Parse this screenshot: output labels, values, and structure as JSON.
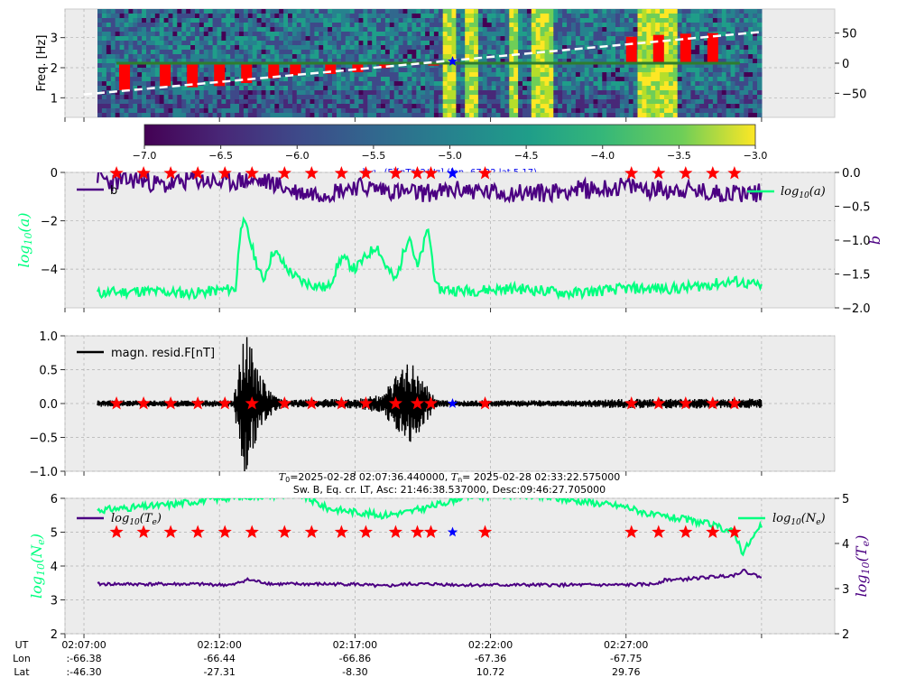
{
  "chart_data": [
    {
      "type": "heatmap",
      "panel": "spectrogram",
      "ylabel": "Freq. [Hz]",
      "ylim": [
        0.35,
        3.95
      ],
      "yticks": [
        1,
        2,
        3
      ],
      "right_ylim": [
        -90,
        90
      ],
      "right_yticks": [
        50,
        0,
        -50
      ],
      "colorbar": {
        "min": -7.0,
        "max": -3.0,
        "ticks": [
          -7.0,
          -6.5,
          -6.0,
          -5.5,
          -5.0,
          -4.5,
          -4.0,
          -3.5,
          -3.0
        ],
        "label": "log10(F)[nT**2/Hz] (lon -67.22 lat 5.17)"
      },
      "colorbar_label_prefix": "log",
      "colorbar_label_sub": "10",
      "colorbar_label_rest": "(F)[nT**2/Hz] (lon -67.22 lat 5.17)",
      "latitude_line": {
        "x": [
          0,
          25
        ],
        "y": [
          -52,
          52
        ],
        "style": "dashed",
        "color": "#ffffff"
      },
      "bright_bands_min": [
        [
          13.3,
          13.7
        ],
        [
          14.0,
          14.5
        ],
        [
          15.7,
          16.0
        ],
        [
          16.5,
          17.4
        ],
        [
          20.5,
          21.9
        ]
      ],
      "event_bars": [
        {
          "x": 1.5,
          "top": 0,
          "bottom": -45
        },
        {
          "x": 3.0,
          "top": 0,
          "bottom": -38
        },
        {
          "x": 4.0,
          "top": 0,
          "bottom": -40
        },
        {
          "x": 5.0,
          "top": 0,
          "bottom": -38
        },
        {
          "x": 6.0,
          "top": 0,
          "bottom": -33
        },
        {
          "x": 7.0,
          "top": 0,
          "bottom": -25
        },
        {
          "x": 7.8,
          "top": 0,
          "bottom": -20
        },
        {
          "x": 9.1,
          "top": 0,
          "bottom": -18
        },
        {
          "x": 10.1,
          "top": 0,
          "bottom": -15
        },
        {
          "x": 11.1,
          "top": 0,
          "bottom": -8
        },
        {
          "x": 12.9,
          "top": 0,
          "bottom": -4
        },
        {
          "x": 20.2,
          "top": 44,
          "bottom": 0
        },
        {
          "x": 21.2,
          "top": 47,
          "bottom": 0
        },
        {
          "x": 22.2,
          "top": 49,
          "bottom": 0
        },
        {
          "x": 23.2,
          "top": 50,
          "bottom": 0
        }
      ],
      "star": {
        "x": 13.6,
        "y": 3
      }
    },
    {
      "type": "line",
      "panel": "fit_params",
      "ylabel_left": "log10(a)",
      "ylabel_right": "b",
      "ylim_left": [
        -5.6,
        0
      ],
      "yticks_left": [
        0,
        -2,
        -4
      ],
      "ylim_right": [
        -2.0,
        0.0
      ],
      "yticks_right": [
        0.0,
        -0.5,
        -1.0,
        -1.5,
        -2.0
      ],
      "series": [
        {
          "name": "b",
          "axis": "right",
          "color": "#4b0082",
          "t": [
            0.5,
            1,
            2,
            3,
            4,
            5,
            6,
            7,
            7.5,
            8,
            9,
            10,
            11,
            12,
            13,
            14,
            15,
            16,
            17,
            18,
            19,
            20,
            21,
            22,
            23,
            24,
            25
          ],
          "y": [
            -0.05,
            -0.15,
            -0.1,
            -0.2,
            -0.1,
            -0.15,
            -0.12,
            -0.15,
            -0.25,
            -0.3,
            -0.3,
            -0.2,
            -0.25,
            -0.3,
            -0.3,
            -0.25,
            -0.3,
            -0.3,
            -0.3,
            -0.25,
            -0.25,
            -0.2,
            -0.25,
            -0.25,
            -0.3,
            -0.3,
            -0.3
          ]
        },
        {
          "name": "log10(a)",
          "axis": "left",
          "color": "#00ff7f",
          "t": [
            0.5,
            2,
            4,
            5.6,
            5.8,
            6.0,
            6.3,
            6.6,
            7,
            7.5,
            8,
            9,
            9.5,
            10,
            10.8,
            11.1,
            11.5,
            12,
            12.3,
            12.7,
            13,
            14,
            16,
            18,
            20,
            22,
            24,
            25
          ],
          "y": [
            -5.0,
            -4.9,
            -5.0,
            -4.8,
            -2.0,
            -2.3,
            -3.5,
            -4.5,
            -3.2,
            -4.0,
            -4.5,
            -4.8,
            -3.5,
            -4.0,
            -3.0,
            -3.8,
            -4.5,
            -2.5,
            -4.0,
            -2.3,
            -4.8,
            -4.9,
            -4.8,
            -5.0,
            -4.8,
            -4.8,
            -4.5,
            -4.7
          ]
        }
      ],
      "legend_left": "b",
      "legend_right": "log10(a)"
    },
    {
      "type": "line",
      "panel": "residual",
      "ylim": [
        -1.0,
        1.0
      ],
      "yticks": [
        1.0,
        0.5,
        0.0,
        -0.5,
        -1.0
      ],
      "series": [
        {
          "name": "magn. resid.F[nT]",
          "color": "#000000",
          "t": [
            0.5,
            2,
            4,
            5.5,
            6.0,
            6.3,
            6.6,
            7,
            7.5,
            8,
            10,
            11,
            12,
            12.5,
            13,
            13.5,
            14,
            15,
            18,
            20,
            22,
            25
          ],
          "amp": [
            0.04,
            0.04,
            0.04,
            0.04,
            1.0,
            0.5,
            0.3,
            0.1,
            0.05,
            0.05,
            0.06,
            0.12,
            0.55,
            0.3,
            0.05,
            0.04,
            0.04,
            0.04,
            0.04,
            0.06,
            0.06,
            0.06
          ]
        }
      ],
      "legend": "magn. resid.F[nT]",
      "stars_y": 0.0
    },
    {
      "type": "line",
      "panel": "plasma",
      "title": "T0=2025-02-28 02:07:36.440000, Tn= 2025-02-28 02:33:22.575000",
      "title_t0_var": "T",
      "title_t0_sub": "0",
      "title_t0_rest": "=2025-02-28 02:07:36.440000, ",
      "title_tn_var": "T",
      "title_tn_sub": "n",
      "title_tn_rest": "= 2025-02-28 02:33:22.575000",
      "subtitle": "Sw. B, Eq. cr. LT, Asc: 21:46:38.537000, Desc:09:46:27.705000",
      "ylabel_left": "log10(Ne)",
      "ylabel_right": "log10(Te)",
      "ylim_left": [
        2,
        6
      ],
      "yticks_left": [
        6,
        5,
        4,
        3,
        2
      ],
      "ylim_right": [
        2,
        5
      ],
      "yticks_right": [
        5,
        4,
        3,
        2
      ],
      "series": [
        {
          "name": "log10(Ne)",
          "axis": "left",
          "color": "#00ff7f",
          "t": [
            0.5,
            3,
            5,
            6,
            7,
            8,
            9,
            10,
            11,
            12,
            13,
            14,
            16,
            18,
            20,
            21,
            22,
            23,
            24,
            24.3,
            25
          ],
          "y": [
            5.65,
            5.8,
            6.0,
            6.05,
            6.1,
            6.1,
            5.7,
            5.6,
            5.5,
            5.6,
            5.8,
            6.05,
            6.1,
            5.95,
            5.75,
            5.5,
            5.4,
            5.25,
            5.0,
            4.4,
            5.2
          ]
        },
        {
          "name": "log10(Te)",
          "axis": "right",
          "color": "#4b0082",
          "t": [
            0.5,
            2,
            4,
            5.5,
            6,
            7,
            8,
            9,
            10,
            11,
            12,
            13,
            14,
            16,
            18,
            20,
            21,
            21.5,
            22,
            23,
            24,
            24.3,
            25
          ],
          "y": [
            3.1,
            3.1,
            3.1,
            3.08,
            3.2,
            3.1,
            3.1,
            3.1,
            3.1,
            3.05,
            3.1,
            3.1,
            3.08,
            3.08,
            3.08,
            3.08,
            3.1,
            3.2,
            3.2,
            3.25,
            3.3,
            3.4,
            3.25
          ]
        }
      ],
      "legend_left": "log10(Te)",
      "legend_right": "log10(Ne)",
      "stars_y": 5.0
    }
  ],
  "event_stars_min": [
    1.2,
    2.2,
    3.2,
    4.2,
    5.2,
    6.2,
    7.4,
    8.4,
    9.5,
    10.4,
    11.5,
    12.3,
    12.8,
    14.8,
    20.2,
    21.2,
    22.2,
    23.2,
    24.0
  ],
  "blue_star_min": 13.6,
  "xaxis": {
    "range_min": [
      -0.7,
      27.7
    ],
    "ticks_min": [
      0,
      5,
      10,
      15,
      20
    ],
    "minor_ticks_min": [
      -0.7,
      25
    ],
    "row_labels": [
      "UT",
      "Lon",
      "Lat"
    ],
    "ut": [
      "02:07:00",
      "02:12:00",
      "02:17:00",
      "02:22:00",
      "02:27:00"
    ],
    "lon": [
      ":-66.38",
      "-66.44",
      "-66.86",
      "-67.36",
      "-67.75"
    ],
    "lat": [
      ":-46.30",
      "-27.31",
      "-8.30",
      "10.72",
      "29.76"
    ]
  },
  "colors": {
    "panel_bg": "#ececec",
    "grid": "#b0b0b0",
    "star": "#ff0000",
    "blue_star": "#0000ff",
    "ne": "#00ff7f",
    "te": "#4b0082"
  }
}
